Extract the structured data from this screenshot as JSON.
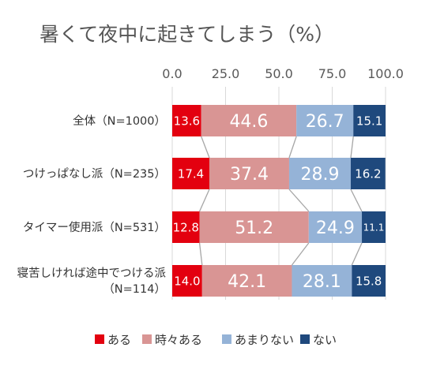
{
  "chart_data": {
    "type": "bar",
    "orientation": "horizontal-stacked-100",
    "title": "暑くて夜中に起きてしまう（%）",
    "categories": [
      [
        "全体（N=1000）"
      ],
      [
        "つけっぱなし派（N=235）"
      ],
      [
        "タイマー使用派（N=531）"
      ],
      [
        "寝苦しければ途中でつける派",
        "（N=114）"
      ]
    ],
    "series": [
      {
        "name": "ある",
        "color": "#e3000f",
        "values": [
          13.6,
          17.4,
          12.8,
          14.0
        ],
        "labels": [
          "13.6",
          "17.4",
          "12.8",
          "14.0"
        ]
      },
      {
        "name": "時々ある",
        "color": "#d99594",
        "values": [
          44.6,
          37.4,
          51.2,
          42.1
        ],
        "labels": [
          "44.6",
          "37.4",
          "51.2",
          "42.1"
        ]
      },
      {
        "name": "あまりない",
        "color": "#95b3d7",
        "values": [
          26.7,
          28.9,
          24.9,
          28.1
        ],
        "labels": [
          "26.7",
          "28.9",
          "24.9",
          "28.1"
        ]
      },
      {
        "name": "ない",
        "color": "#1f497d",
        "values": [
          15.1,
          16.2,
          11.1,
          15.8
        ],
        "labels": [
          "15.1",
          "16.2",
          "11.1",
          "15.8"
        ]
      }
    ],
    "xlim": [
      0,
      100
    ],
    "xticks": [
      "0.0",
      "25.0",
      "50.0",
      "75.0",
      "100.0"
    ],
    "xtick_values": [
      0,
      25,
      50,
      75,
      100
    ],
    "series_lines": true,
    "legend_position": "bottom",
    "grid": true
  }
}
